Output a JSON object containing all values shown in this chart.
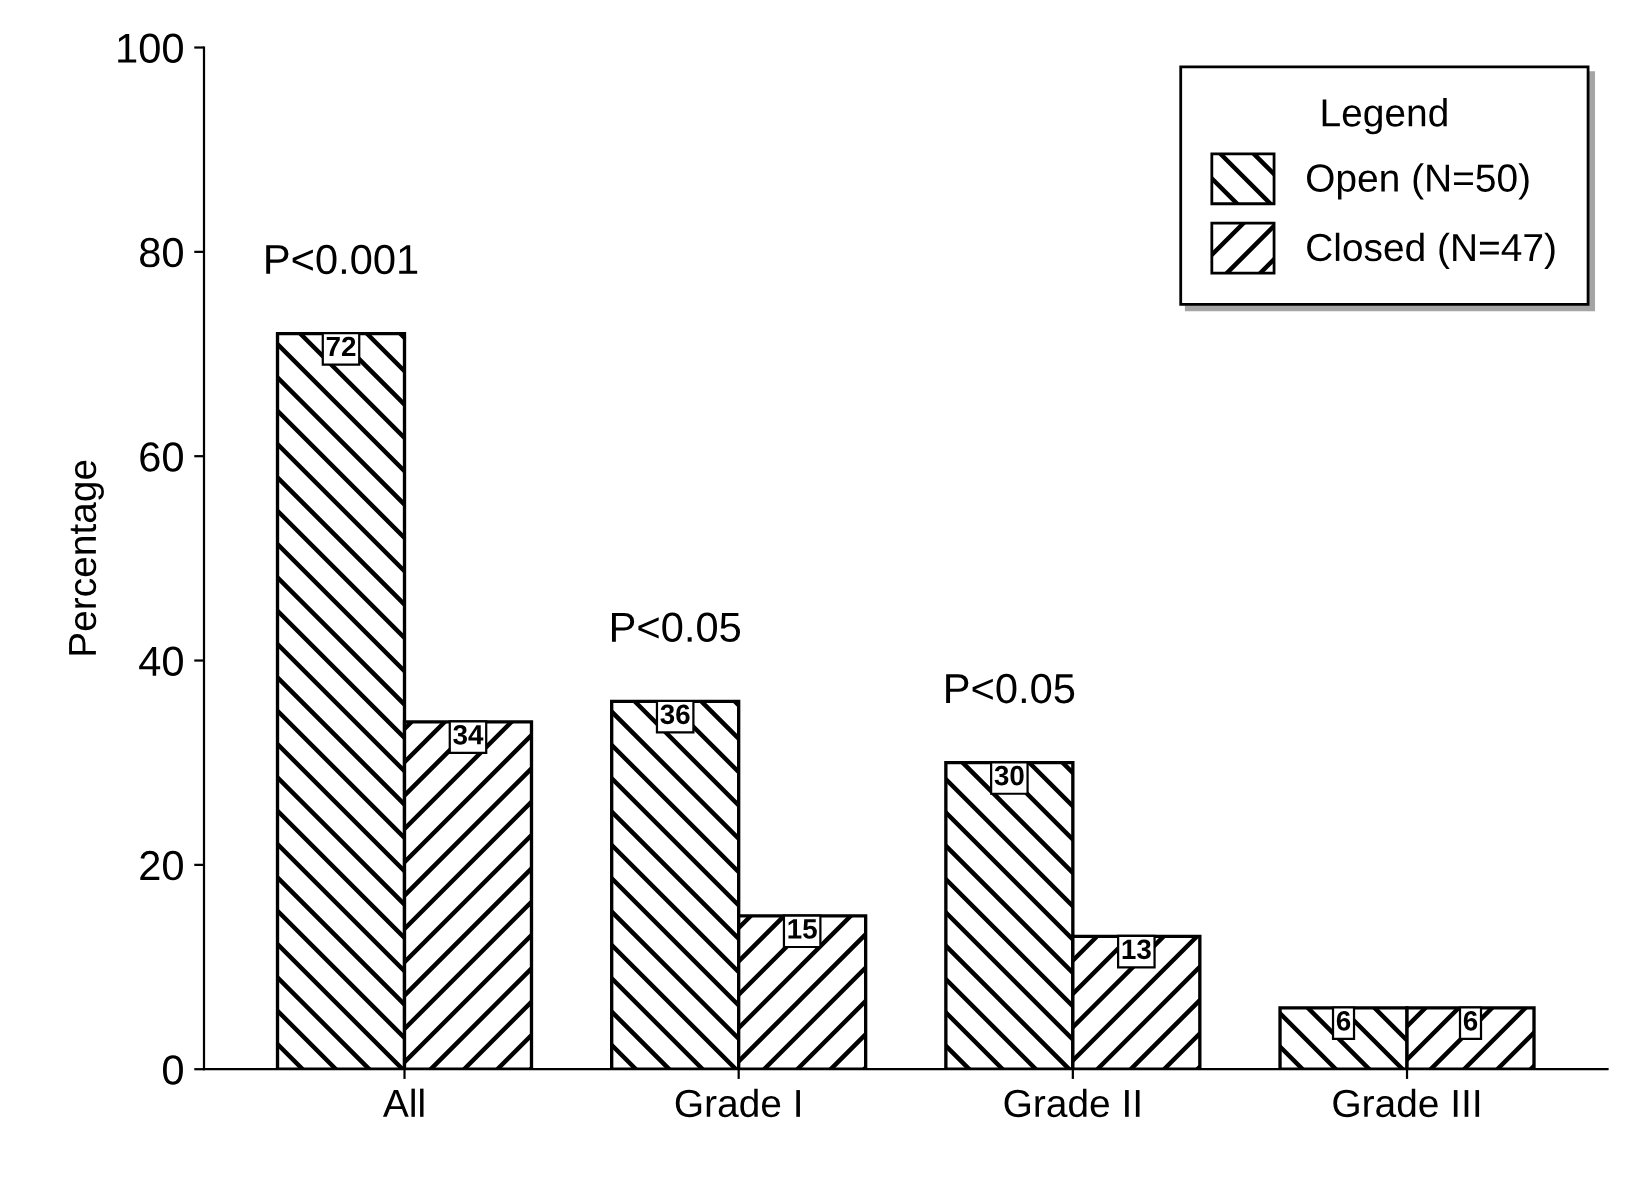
{
  "chart_data": {
    "type": "bar",
    "ylabel": "Percentage",
    "legend_title": "Legend",
    "categories": [
      "All",
      "Grade I",
      "Grade II",
      "Grade III"
    ],
    "series": [
      {
        "name": "Open (N=50)",
        "color": "#000000",
        "values": [
          72,
          36,
          30,
          6
        ]
      },
      {
        "name": "Closed (N=47)",
        "color": "#000000",
        "values": [
          34,
          15,
          13,
          6
        ]
      }
    ],
    "annotations": [
      "P<0.001",
      "P<0.05",
      "P<0.05"
    ],
    "ylim": [
      0,
      100
    ],
    "yticks": [
      0,
      20,
      40,
      60,
      80,
      100
    ],
    "data_labels": true,
    "grid": false,
    "legend": "top right"
  }
}
